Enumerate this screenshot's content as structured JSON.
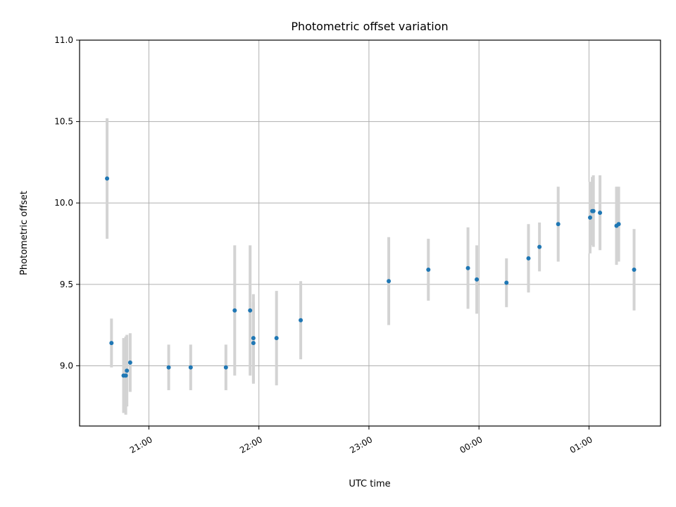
{
  "chart_data": {
    "type": "scatter",
    "title": "Photometric offset variation",
    "xlabel": "UTC time",
    "ylabel": "Photometric offset",
    "x_unit": "hours since 20:00 UTC (axis continues past midnight)",
    "xlim": [
      20.37,
      25.65
    ],
    "ylim": [
      8.63,
      11.0
    ],
    "xticks": [
      {
        "value": 21,
        "label": "21:00"
      },
      {
        "value": 22,
        "label": "22:00"
      },
      {
        "value": 23,
        "label": "23:00"
      },
      {
        "value": 24,
        "label": "00:00"
      },
      {
        "value": 25,
        "label": "01:00"
      }
    ],
    "yticks": [
      {
        "value": 9.0,
        "label": "9.0"
      },
      {
        "value": 9.5,
        "label": "9.5"
      },
      {
        "value": 10.0,
        "label": "10.0"
      },
      {
        "value": 10.5,
        "label": "10.5"
      },
      {
        "value": 11.0,
        "label": "11.0"
      }
    ],
    "grid": true,
    "marker_color": "#1f77b4",
    "errorbar_color": "#d3d3d3",
    "points": [
      {
        "x": 20.62,
        "y": 10.15,
        "err": 0.37
      },
      {
        "x": 20.66,
        "y": 9.14,
        "err": 0.15
      },
      {
        "x": 20.77,
        "y": 8.94,
        "err": 0.23
      },
      {
        "x": 20.79,
        "y": 8.94,
        "err": 0.24
      },
      {
        "x": 20.8,
        "y": 8.97,
        "err": 0.22
      },
      {
        "x": 20.83,
        "y": 9.02,
        "err": 0.18
      },
      {
        "x": 21.18,
        "y": 8.99,
        "err": 0.14
      },
      {
        "x": 21.38,
        "y": 8.99,
        "err": 0.14
      },
      {
        "x": 21.7,
        "y": 8.99,
        "err": 0.14
      },
      {
        "x": 21.78,
        "y": 9.34,
        "err": 0.4
      },
      {
        "x": 21.92,
        "y": 9.34,
        "err": 0.4
      },
      {
        "x": 21.95,
        "y": 9.17,
        "err": 0.27
      },
      {
        "x": 21.95,
        "y": 9.14,
        "err": 0.25
      },
      {
        "x": 22.16,
        "y": 9.17,
        "err": 0.29
      },
      {
        "x": 22.38,
        "y": 9.28,
        "err": 0.24
      },
      {
        "x": 23.18,
        "y": 9.52,
        "err": 0.27
      },
      {
        "x": 23.54,
        "y": 9.59,
        "err": 0.19
      },
      {
        "x": 23.9,
        "y": 9.6,
        "err": 0.25
      },
      {
        "x": 23.98,
        "y": 9.53,
        "err": 0.21
      },
      {
        "x": 24.25,
        "y": 9.51,
        "err": 0.15
      },
      {
        "x": 24.45,
        "y": 9.66,
        "err": 0.21
      },
      {
        "x": 24.55,
        "y": 9.73,
        "err": 0.15
      },
      {
        "x": 24.72,
        "y": 9.87,
        "err": 0.23
      },
      {
        "x": 25.01,
        "y": 9.91,
        "err": 0.22
      },
      {
        "x": 25.03,
        "y": 9.95,
        "err": 0.21
      },
      {
        "x": 25.04,
        "y": 9.95,
        "err": 0.22
      },
      {
        "x": 25.1,
        "y": 9.94,
        "err": 0.23
      },
      {
        "x": 25.25,
        "y": 9.86,
        "err": 0.24
      },
      {
        "x": 25.27,
        "y": 9.87,
        "err": 0.23
      },
      {
        "x": 25.41,
        "y": 9.59,
        "err": 0.25
      }
    ]
  }
}
